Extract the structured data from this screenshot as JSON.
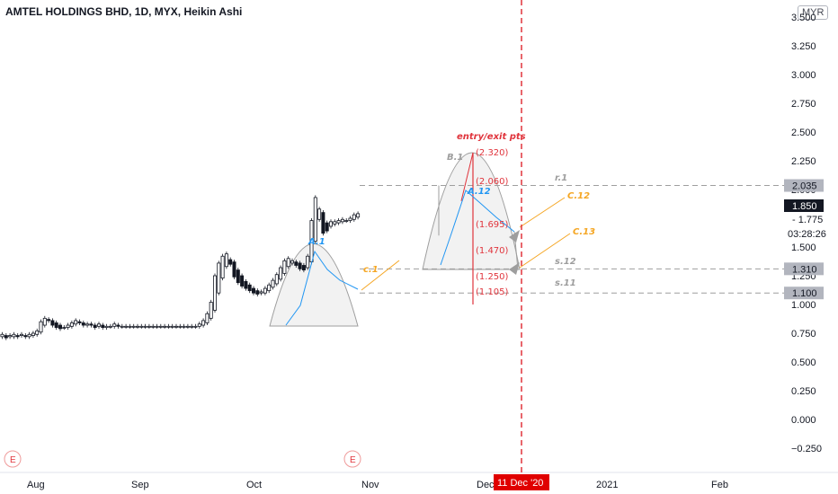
{
  "header": {
    "title": "AMTEL HOLDINGS BHD, 1D, MYX, Heikin Ashi",
    "currency": "MYR"
  },
  "chart_data": {
    "type": "candlestick",
    "y_ticks": [
      "−0.250",
      "0.000",
      "0.250",
      "0.500",
      "0.750",
      "1.000",
      "1.250",
      "1.500",
      "1.775",
      "2.000",
      "2.250",
      "2.500",
      "2.750",
      "3.000",
      "3.250",
      "3.500"
    ],
    "x_ticks": [
      "Aug",
      "Sep",
      "Oct",
      "Nov",
      "Dec",
      "2021",
      "Feb"
    ],
    "ylim": [
      -0.3,
      3.5
    ],
    "series": [
      {
        "o": 0.72,
        "c": 0.74
      },
      {
        "o": 0.73,
        "c": 0.71
      },
      {
        "o": 0.72,
        "c": 0.73
      },
      {
        "o": 0.72,
        "c": 0.74
      },
      {
        "o": 0.73,
        "c": 0.72
      },
      {
        "o": 0.73,
        "c": 0.74
      },
      {
        "o": 0.73,
        "c": 0.72
      },
      {
        "o": 0.72,
        "c": 0.74
      },
      {
        "o": 0.73,
        "c": 0.75
      },
      {
        "o": 0.74,
        "c": 0.77
      },
      {
        "o": 0.76,
        "c": 0.85
      },
      {
        "o": 0.82,
        "c": 0.88
      },
      {
        "o": 0.87,
        "c": 0.86
      },
      {
        "o": 0.86,
        "c": 0.82
      },
      {
        "o": 0.84,
        "c": 0.8
      },
      {
        "o": 0.82,
        "c": 0.79
      },
      {
        "o": 0.8,
        "c": 0.8
      },
      {
        "o": 0.8,
        "c": 0.82
      },
      {
        "o": 0.81,
        "c": 0.84
      },
      {
        "o": 0.83,
        "c": 0.86
      },
      {
        "o": 0.85,
        "c": 0.84
      },
      {
        "o": 0.84,
        "c": 0.82
      },
      {
        "o": 0.82,
        "c": 0.83
      },
      {
        "o": 0.83,
        "c": 0.82
      },
      {
        "o": 0.82,
        "c": 0.8
      },
      {
        "o": 0.81,
        "c": 0.83
      },
      {
        "o": 0.82,
        "c": 0.8
      },
      {
        "o": 0.8,
        "c": 0.81
      },
      {
        "o": 0.81,
        "c": 0.81
      },
      {
        "o": 0.81,
        "c": 0.83
      },
      {
        "o": 0.82,
        "c": 0.81
      },
      {
        "o": 0.81,
        "c": 0.81
      },
      {
        "o": 0.81,
        "c": 0.81
      },
      {
        "o": 0.81,
        "c": 0.81
      },
      {
        "o": 0.81,
        "c": 0.81
      },
      {
        "o": 0.81,
        "c": 0.81
      },
      {
        "o": 0.81,
        "c": 0.81
      },
      {
        "o": 0.81,
        "c": 0.81
      },
      {
        "o": 0.81,
        "c": 0.81
      },
      {
        "o": 0.81,
        "c": 0.81
      },
      {
        "o": 0.81,
        "c": 0.81
      },
      {
        "o": 0.81,
        "c": 0.81
      },
      {
        "o": 0.81,
        "c": 0.81
      },
      {
        "o": 0.81,
        "c": 0.81
      },
      {
        "o": 0.81,
        "c": 0.81
      },
      {
        "o": 0.81,
        "c": 0.81
      },
      {
        "o": 0.81,
        "c": 0.81
      },
      {
        "o": 0.81,
        "c": 0.81
      },
      {
        "o": 0.81,
        "c": 0.81
      },
      {
        "o": 0.81,
        "c": 0.81
      },
      {
        "o": 0.81,
        "c": 0.81
      },
      {
        "o": 0.81,
        "c": 0.83
      },
      {
        "o": 0.82,
        "c": 0.86
      },
      {
        "o": 0.84,
        "c": 0.92
      },
      {
        "o": 0.88,
        "c": 1.02
      },
      {
        "o": 0.95,
        "c": 1.25
      },
      {
        "o": 1.1,
        "c": 1.36
      },
      {
        "o": 1.23,
        "c": 1.42
      },
      {
        "o": 1.33,
        "c": 1.44
      },
      {
        "o": 1.39,
        "c": 1.35
      },
      {
        "o": 1.37,
        "c": 1.24
      },
      {
        "o": 1.3,
        "c": 1.19
      },
      {
        "o": 1.25,
        "c": 1.16
      },
      {
        "o": 1.2,
        "c": 1.14
      },
      {
        "o": 1.17,
        "c": 1.12
      },
      {
        "o": 1.14,
        "c": 1.1
      },
      {
        "o": 1.12,
        "c": 1.09
      },
      {
        "o": 1.1,
        "c": 1.11
      },
      {
        "o": 1.1,
        "c": 1.14
      },
      {
        "o": 1.12,
        "c": 1.17
      },
      {
        "o": 1.15,
        "c": 1.21
      },
      {
        "o": 1.18,
        "c": 1.26
      },
      {
        "o": 1.22,
        "c": 1.32
      },
      {
        "o": 1.27,
        "c": 1.38
      },
      {
        "o": 1.33,
        "c": 1.4
      },
      {
        "o": 1.36,
        "c": 1.38
      },
      {
        "o": 1.37,
        "c": 1.34
      },
      {
        "o": 1.36,
        "c": 1.31
      },
      {
        "o": 1.34,
        "c": 1.3
      },
      {
        "o": 1.32,
        "c": 1.42
      },
      {
        "o": 1.37,
        "c": 1.73
      },
      {
        "o": 1.55,
        "c": 1.93
      },
      {
        "o": 1.74,
        "c": 1.83
      },
      {
        "o": 1.8,
        "c": 1.62
      },
      {
        "o": 1.71,
        "c": 1.64
      },
      {
        "o": 1.68,
        "c": 1.72
      },
      {
        "o": 1.7,
        "c": 1.72
      },
      {
        "o": 1.71,
        "c": 1.73
      },
      {
        "o": 1.72,
        "c": 1.74
      },
      {
        "o": 1.73,
        "c": 1.73
      },
      {
        "o": 1.73,
        "c": 1.75
      },
      {
        "o": 1.74,
        "c": 1.78
      },
      {
        "o": 1.76,
        "c": 1.79
      }
    ],
    "levels": [
      {
        "name": "r.1",
        "value": 2.035,
        "label": "2.035"
      },
      {
        "name": "s.12",
        "value": 1.31,
        "label": "1.310"
      },
      {
        "name": "s.11",
        "value": 1.1,
        "label": "1.100"
      }
    ],
    "current_price": {
      "label": "1.850",
      "value": 1.85
    },
    "countdown": "03:28:26",
    "entry_exit": {
      "title": "entry/exit pts",
      "values": [
        "(2.320)",
        "(2.060)",
        "(1.695)",
        "(1.470)",
        "(1.250)",
        "(1.105)"
      ]
    },
    "annotations": [
      "A.1",
      "c.1",
      "B.1",
      "A.12",
      "C.12",
      "C.13",
      "r.1",
      "s.12",
      "s.11"
    ],
    "date_marker": "11 Dec '20",
    "event_icons": [
      "E",
      "E"
    ],
    "colors": {
      "up": "#ffffff",
      "down": "#131722",
      "level_badge": "#b2b5be",
      "price_badge": "#131722",
      "red": "#e0343c",
      "blue": "#2196f3",
      "orange": "#f5a623",
      "gray": "#9e9e9e"
    }
  }
}
